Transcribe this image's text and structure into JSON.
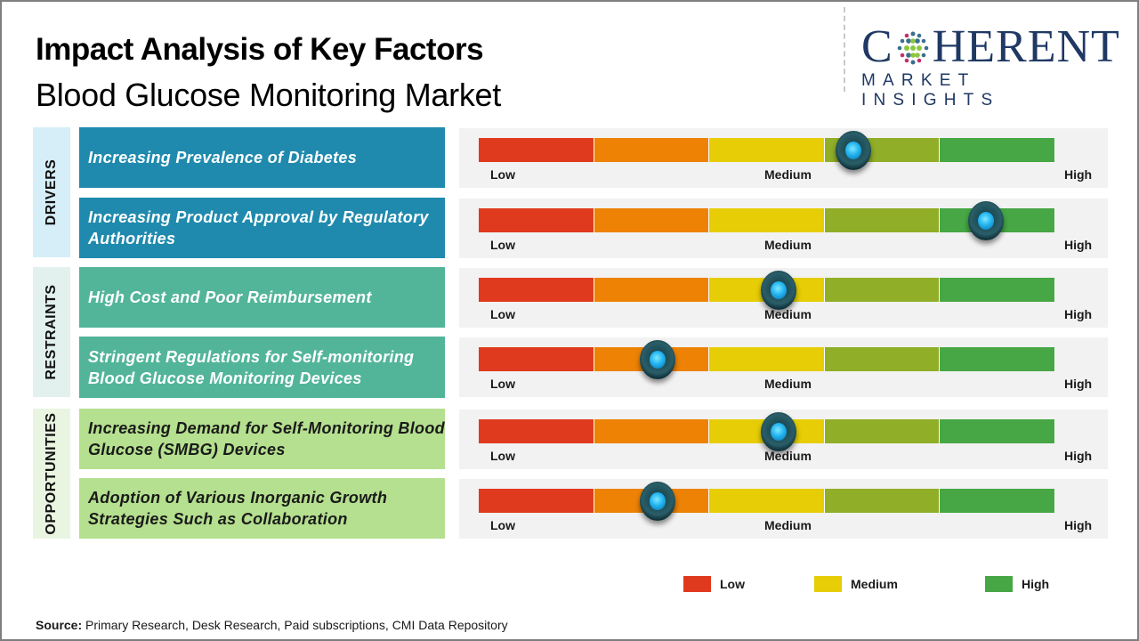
{
  "header": {
    "title": "Impact Analysis of Key Factors",
    "subtitle": "Blood Glucose Monitoring Market"
  },
  "logo": {
    "main_text_prefix": "C",
    "main_text_suffix": "HERENT",
    "sub_text": "MARKET INSIGHTS",
    "icon": "globe-dots-icon"
  },
  "scale_colors": [
    "#e03a1e",
    "#ed8205",
    "#e6cd06",
    "#90ae27",
    "#46a744"
  ],
  "categories": [
    {
      "label": "DRIVERS",
      "bg": "#d6eef8",
      "factor_bg": "#1f8aad",
      "text_dark": false
    },
    {
      "label": "RESTRAINTS",
      "bg": "#e2f1ee",
      "factor_bg": "#52b599",
      "text_dark": false
    },
    {
      "label": "OPPORTUNITIES",
      "bg": "#e9f5e1",
      "factor_bg": "#b5e08f",
      "text_dark": true
    }
  ],
  "gauge_labels": {
    "low": "Low",
    "medium": "Medium",
    "high": "High"
  },
  "chart_data": {
    "type": "gauge",
    "title": "Impact Analysis of Key Factors - Blood Glucose Monitoring Market",
    "scale": [
      "Low",
      "Medium",
      "High"
    ],
    "range": [
      0,
      1
    ],
    "segments": 5,
    "factors": [
      {
        "category": "DRIVERS",
        "label": "Increasing Prevalence  of Diabetes",
        "impact": 0.65
      },
      {
        "category": "DRIVERS",
        "label": "Increasing Product Approval by Regulatory Authorities",
        "impact": 0.88
      },
      {
        "category": "RESTRAINTS",
        "label": "High Cost and Poor Reimbursement",
        "impact": 0.52
      },
      {
        "category": "RESTRAINTS",
        "label": "Stringent Regulations  for Self-monitoring Blood Glucose  Monitoring  Devices",
        "impact": 0.31
      },
      {
        "category": "OPPORTUNITIES",
        "label": "Increasing Demand for Self-Monitoring Blood Glucose (SMBG) Devices",
        "impact": 0.52
      },
      {
        "category": "OPPORTUNITIES",
        "label": "Adoption of Various Inorganic Growth Strategies Such as Collaboration",
        "impact": 0.31
      }
    ],
    "legend": [
      {
        "label": "Low",
        "color": "#e03a1e"
      },
      {
        "label": "Medium",
        "color": "#e6cd06"
      },
      {
        "label": "High",
        "color": "#46a744"
      }
    ],
    "legend_position": "bottom-right"
  },
  "footer": {
    "source_label": "Source:",
    "source_text": " Primary Research, Desk Research, Paid subscriptions, CMI Data Repository"
  }
}
